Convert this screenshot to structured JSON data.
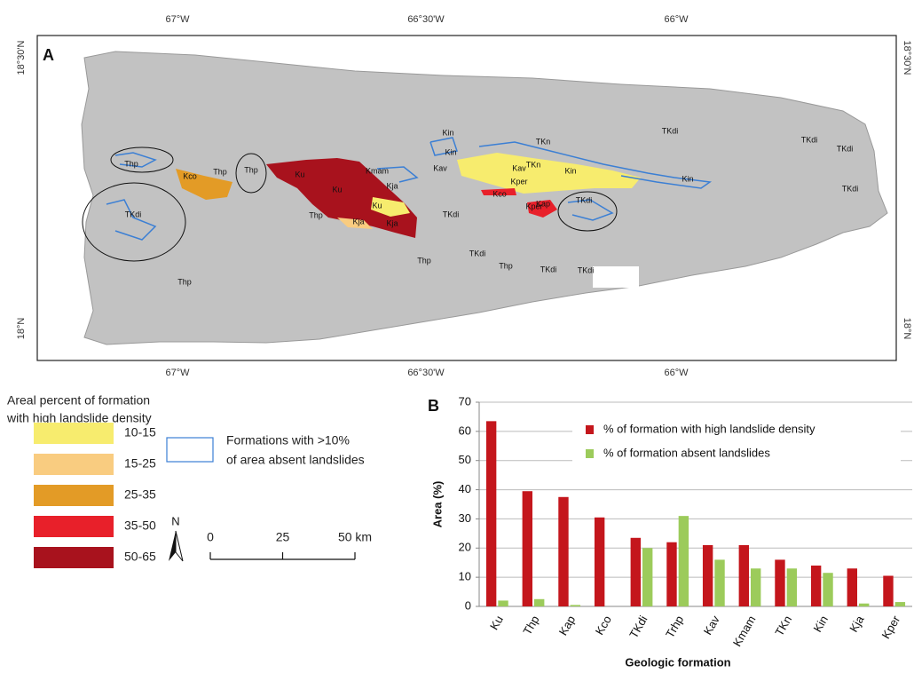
{
  "map": {
    "panel_label": "A",
    "lon_ticks": [
      "67°W",
      "66°30'W",
      "66°W"
    ],
    "lat_ticks": [
      "18°30'N",
      "18°N"
    ],
    "labels": [
      "Thp",
      "Kco",
      "Thp",
      "Thp",
      "TKdi",
      "Ku",
      "Ku",
      "Ku",
      "Thp",
      "Kja",
      "Kja",
      "Kmam",
      "Kja",
      "Kin",
      "Kav",
      "TKdi",
      "Kco",
      "Kper",
      "Kap",
      "TKn",
      "TKn",
      "Kav",
      "Kin",
      "Kin",
      "Kper",
      "TKdi",
      "Kin",
      "TKdi",
      "TKdi",
      "TKdi",
      "TKdi",
      "Thp",
      "TKdi",
      "Thp",
      "TKdi",
      "TKdi",
      "Thp"
    ]
  },
  "legend": {
    "title": [
      "Areal percent of formation",
      "with high landslide density"
    ],
    "classes": [
      {
        "label": "10-15",
        "color": "#f7ec6e"
      },
      {
        "label": "15-25",
        "color": "#f9cc80"
      },
      {
        "label": "25-35",
        "color": "#e39b26"
      },
      {
        "label": "35-50",
        "color": "#e8202a"
      },
      {
        "label": "50-65",
        "color": "#a8121d"
      }
    ],
    "outline_label": [
      "Formations with >10%",
      "of area absent landslides"
    ],
    "outline_color": "#3b7fd4"
  },
  "scale_bar": {
    "north": "N",
    "ticks": [
      0,
      25,
      {
        "value": 50,
        "label": "50 km"
      }
    ]
  },
  "chart_data": {
    "type": "bar",
    "panel_label": "B",
    "categories": [
      "Ku",
      "Thp",
      "Kap",
      "Kco",
      "TKdi",
      "Trhp",
      "Kav",
      "Kmam",
      "TKn",
      "Kin",
      "Kja",
      "Kper"
    ],
    "series": [
      {
        "name": "% of formation with high landslide density",
        "color": "#c4161c",
        "values": [
          63.5,
          39.5,
          37.5,
          30.5,
          23.5,
          22,
          21,
          21,
          16,
          14,
          13,
          10.5
        ]
      },
      {
        "name": "% of formation absent landslides",
        "color": "#9ccb5b",
        "values": [
          2,
          2.5,
          0.5,
          0,
          20,
          31,
          16,
          13,
          13,
          11.5,
          1,
          1.5
        ]
      }
    ],
    "ylim": [
      0,
      70
    ],
    "yticks": [
      0,
      10,
      20,
      30,
      40,
      50,
      60,
      70
    ],
    "grid": true,
    "y_label": "Area (%)",
    "x_label": "Geologic formation"
  }
}
